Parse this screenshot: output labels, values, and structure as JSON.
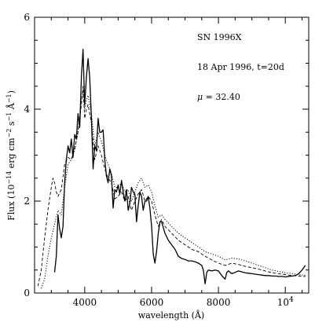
{
  "chart_data": {
    "type": "line",
    "title": "",
    "xlabel": "wavelength (Å)",
    "ylabel": "Flux (10^-14 erg cm^-2 s^-1 Å^-1)",
    "ylabel_parts": {
      "main": "Flux (10",
      "exp1": "−14",
      "mid1": " erg cm",
      "exp2": "−2",
      "mid2": " s",
      "exp3": "−1",
      "mid3": " Å",
      "exp4": "−1",
      "end": ")"
    },
    "xlim": [
      2500,
      10700
    ],
    "ylim": [
      0,
      6
    ],
    "grid": false,
    "annotations": {
      "name": "SN 1996X",
      "date": "18 Apr 1996, t=20d",
      "mu_symbol": "μ",
      "mu_value": " = 32.40"
    },
    "x_ticks": [
      {
        "value": 4000,
        "label": "4000"
      },
      {
        "value": 6000,
        "label": "6000"
      },
      {
        "value": 8000,
        "label": "8000"
      },
      {
        "value": 10000,
        "label": "10",
        "exponent": "4"
      }
    ],
    "y_ticks": [
      {
        "value": 0,
        "label": "0"
      },
      {
        "value": 2,
        "label": "2"
      },
      {
        "value": 4,
        "label": "4"
      },
      {
        "value": 6,
        "label": "6"
      }
    ],
    "series": [
      {
        "style": "solid",
        "color": "#000000",
        "x": [
          3100,
          3150,
          3200,
          3250,
          3300,
          3350,
          3400,
          3450,
          3500,
          3550,
          3600,
          3650,
          3700,
          3750,
          3800,
          3850,
          3900,
          3950,
          4000,
          4050,
          4100,
          4150,
          4200,
          4250,
          4300,
          4350,
          4400,
          4450,
          4500,
          4550,
          4600,
          4650,
          4700,
          4750,
          4800,
          4850,
          4900,
          4950,
          5000,
          5050,
          5100,
          5150,
          5200,
          5250,
          5300,
          5350,
          5400,
          5450,
          5500,
          5550,
          5600,
          5650,
          5700,
          5750,
          5800,
          5850,
          5900,
          5950,
          6000,
          6050,
          6100,
          6150,
          6200,
          6250,
          6300,
          6400,
          6500,
          6600,
          6700,
          6800,
          6900,
          7000,
          7100,
          7200,
          7300,
          7400,
          7500,
          7550,
          7600,
          7650,
          7700,
          7800,
          7900,
          8000,
          8100,
          8200,
          8250,
          8300,
          8350,
          8400,
          8500,
          8600,
          8700,
          8800,
          8900,
          9000,
          9100,
          9200,
          9300,
          9400,
          9500,
          9600,
          9700,
          9800,
          9900,
          10000,
          10100,
          10200,
          10300,
          10400,
          10500,
          10600
        ],
        "y": [
          0.45,
          0.8,
          1.7,
          1.4,
          1.2,
          1.45,
          2.4,
          2.9,
          3.2,
          3.05,
          3.35,
          2.95,
          3.45,
          3.35,
          3.9,
          3.6,
          4.7,
          5.3,
          4.1,
          4.7,
          5.1,
          4.7,
          3.8,
          2.7,
          3.2,
          3.1,
          3.8,
          3.5,
          3.5,
          3.55,
          2.9,
          2.55,
          2.4,
          2.7,
          2.55,
          1.85,
          2.25,
          2.2,
          2.35,
          2.15,
          2.45,
          2.2,
          2.0,
          2.25,
          1.8,
          1.95,
          2.3,
          2.2,
          2.15,
          1.55,
          1.9,
          2.2,
          2.1,
          1.8,
          2.0,
          2.0,
          2.1,
          1.85,
          1.45,
          0.85,
          0.65,
          0.9,
          1.3,
          1.55,
          1.55,
          1.3,
          1.15,
          1.05,
          0.95,
          0.8,
          0.75,
          0.73,
          0.7,
          0.7,
          0.68,
          0.65,
          0.6,
          0.5,
          0.2,
          0.45,
          0.5,
          0.48,
          0.5,
          0.48,
          0.38,
          0.3,
          0.45,
          0.48,
          0.45,
          0.42,
          0.45,
          0.48,
          0.46,
          0.44,
          0.43,
          0.42,
          0.41,
          0.4,
          0.39,
          0.38,
          0.38,
          0.37,
          0.37,
          0.36,
          0.36,
          0.35,
          0.36,
          0.37,
          0.38,
          0.42,
          0.5,
          0.6
        ]
      },
      {
        "style": "dotted",
        "color": "#000000",
        "x": [
          2700,
          2800,
          2900,
          3000,
          3100,
          3200,
          3300,
          3400,
          3500,
          3600,
          3700,
          3800,
          3900,
          3950,
          4000,
          4050,
          4100,
          4200,
          4300,
          4400,
          4500,
          4600,
          4700,
          4800,
          4900,
          5000,
          5100,
          5200,
          5300,
          5400,
          5500,
          5600,
          5700,
          5800,
          5900,
          6000,
          6100,
          6200,
          6300,
          6400,
          6600,
          6800,
          7000,
          7200,
          7400,
          7600,
          7800,
          8000,
          8200,
          8400,
          8600,
          8800,
          9000,
          9200,
          9400,
          9600,
          9800,
          10000,
          10200,
          10400,
          10600
        ],
        "y": [
          0.1,
          0.3,
          0.8,
          1.2,
          1.5,
          1.8,
          1.7,
          2.3,
          2.8,
          2.9,
          3.1,
          3.5,
          4.2,
          4.4,
          4.0,
          4.2,
          4.3,
          3.9,
          3.2,
          3.5,
          3.3,
          3.0,
          2.8,
          2.6,
          2.3,
          2.3,
          2.4,
          2.2,
          2.25,
          2.0,
          2.2,
          2.4,
          2.5,
          2.3,
          2.35,
          2.2,
          1.9,
          1.65,
          1.7,
          1.6,
          1.45,
          1.3,
          1.2,
          1.1,
          1.0,
          0.9,
          0.85,
          0.8,
          0.72,
          0.76,
          0.74,
          0.7,
          0.65,
          0.6,
          0.55,
          0.5,
          0.47,
          0.44,
          0.42,
          0.4,
          0.38
        ]
      },
      {
        "style": "dashed",
        "color": "#000000",
        "x": [
          2600,
          2700,
          2800,
          2900,
          3000,
          3050,
          3100,
          3150,
          3200,
          3300,
          3400,
          3500,
          3600,
          3700,
          3800,
          3900,
          3950,
          4000,
          4050,
          4100,
          4200,
          4300,
          4400,
          4500,
          4600,
          4700,
          4800,
          4900,
          5000,
          5100,
          5200,
          5300,
          5400,
          5500,
          5600,
          5700,
          5800,
          5900,
          6000,
          6100,
          6200,
          6300,
          6400,
          6600,
          6800,
          7000,
          7200,
          7400,
          7600,
          7800,
          8000,
          8200,
          8400,
          8600,
          8800,
          9000,
          9200,
          9400,
          9600,
          9800,
          10000,
          10200,
          10400,
          10600
        ],
        "y": [
          0.15,
          0.5,
          1.2,
          1.8,
          2.3,
          2.5,
          2.4,
          2.2,
          2.1,
          2.25,
          2.8,
          2.95,
          2.9,
          3.15,
          3.5,
          4.1,
          4.5,
          3.8,
          4.0,
          4.1,
          3.7,
          2.9,
          3.2,
          3.0,
          2.7,
          2.5,
          2.4,
          2.05,
          2.1,
          2.2,
          2.0,
          2.1,
          1.8,
          2.0,
          2.15,
          2.25,
          2.0,
          2.1,
          2.0,
          1.7,
          1.45,
          1.6,
          1.45,
          1.3,
          1.15,
          1.05,
          0.95,
          0.9,
          0.8,
          0.72,
          0.65,
          0.6,
          0.65,
          0.62,
          0.58,
          0.55,
          0.52,
          0.48,
          0.44,
          0.42,
          0.4,
          0.38,
          0.37,
          0.36
        ]
      }
    ]
  }
}
